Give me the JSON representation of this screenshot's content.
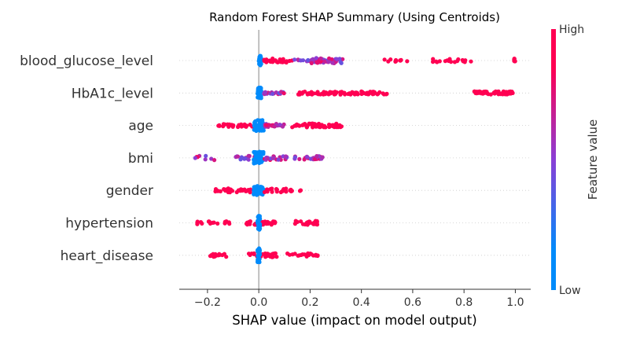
{
  "chart_data": {
    "type": "scatter",
    "title": "Random Forest SHAP Summary (Using Centroids)",
    "xlabel": "SHAP value (impact on model output)",
    "xlim": [
      -0.31,
      1.06
    ],
    "xticks": [
      -0.2,
      0.0,
      0.2,
      0.4,
      0.6,
      0.8,
      1.0
    ],
    "xtick_labels": [
      "−0.2",
      "0.0",
      "0.2",
      "0.4",
      "0.6",
      "0.8",
      "1.0"
    ],
    "grid": false,
    "colorbar": {
      "title": "Feature value",
      "high_label": "High",
      "low_label": "Low",
      "low_color": "#008bfb",
      "mid_color": "#8a3fd6",
      "high_color": "#ff0052"
    },
    "features": [
      {
        "name": "blood_glucose_level",
        "clusters": [
          {
            "range": [
              0.0,
              0.01
            ],
            "color": "low",
            "n": 40,
            "spread": 6
          },
          {
            "range": [
              0.02,
              0.13
            ],
            "color": "high",
            "n": 30,
            "spread": 2.5
          },
          {
            "range": [
              0.13,
              0.2
            ],
            "color": "mixed",
            "n": 8,
            "spread": 1.5
          },
          {
            "range": [
              0.2,
              0.33
            ],
            "color": "mixed",
            "n": 45,
            "spread": 3.5
          },
          {
            "range": [
              0.49,
              0.58
            ],
            "color": "high",
            "n": 10,
            "spread": 1.5
          },
          {
            "range": [
              0.67,
              0.83
            ],
            "color": "high",
            "n": 18,
            "spread": 2
          },
          {
            "range": [
              0.995,
              1.0
            ],
            "color": "high",
            "n": 6,
            "spread": 3
          }
        ]
      },
      {
        "name": "HbA1c_level",
        "clusters": [
          {
            "range": [
              -0.005,
              0.01
            ],
            "color": "low",
            "n": 40,
            "spread": 7
          },
          {
            "range": [
              0.02,
              0.1
            ],
            "color": "mixed",
            "n": 22,
            "spread": 1.5
          },
          {
            "range": [
              0.15,
              0.5
            ],
            "color": "high",
            "n": 90,
            "spread": 2
          },
          {
            "range": [
              0.84,
              1.0
            ],
            "color": "high",
            "n": 60,
            "spread": 2
          }
        ]
      },
      {
        "name": "age",
        "clusters": [
          {
            "range": [
              -0.16,
              -0.02
            ],
            "color": "high",
            "n": 26,
            "spread": 2
          },
          {
            "range": [
              -0.02,
              0.02
            ],
            "color": "low",
            "n": 40,
            "spread": 7
          },
          {
            "range": [
              0.02,
              0.1
            ],
            "color": "mixed",
            "n": 24,
            "spread": 2
          },
          {
            "range": [
              0.13,
              0.33
            ],
            "color": "high",
            "n": 55,
            "spread": 2.5
          }
        ]
      },
      {
        "name": "bmi",
        "clusters": [
          {
            "range": [
              -0.25,
              -0.17
            ],
            "color": "mixed",
            "n": 8,
            "spread": 3
          },
          {
            "range": [
              -0.09,
              -0.01
            ],
            "color": "mixed",
            "n": 18,
            "spread": 2.5
          },
          {
            "range": [
              -0.02,
              0.02
            ],
            "color": "low",
            "n": 40,
            "spread": 8
          },
          {
            "range": [
              0.02,
              0.11
            ],
            "color": "mixed",
            "n": 22,
            "spread": 2.5
          },
          {
            "range": [
              0.14,
              0.25
            ],
            "color": "mixed",
            "n": 30,
            "spread": 2.5
          }
        ]
      },
      {
        "name": "gender",
        "clusters": [
          {
            "range": [
              -0.17,
              -0.02
            ],
            "color": "high",
            "n": 35,
            "spread": 2.5
          },
          {
            "range": [
              -0.02,
              0.02
            ],
            "color": "low",
            "n": 40,
            "spread": 6
          },
          {
            "range": [
              0.02,
              0.13
            ],
            "color": "high",
            "n": 25,
            "spread": 2.5
          },
          {
            "range": [
              0.16,
              0.17
            ],
            "color": "high",
            "n": 2,
            "spread": 1
          }
        ]
      },
      {
        "name": "hypertension",
        "clusters": [
          {
            "range": [
              -0.24,
              -0.11
            ],
            "color": "high",
            "n": 18,
            "spread": 2
          },
          {
            "range": [
              -0.05,
              0.07
            ],
            "color": "high",
            "n": 30,
            "spread": 2.5
          },
          {
            "range": [
              -0.005,
              0.005
            ],
            "color": "low",
            "n": 40,
            "spread": 9
          },
          {
            "range": [
              0.14,
              0.24
            ],
            "color": "high",
            "n": 30,
            "spread": 2.5
          }
        ]
      },
      {
        "name": "heart_disease",
        "clusters": [
          {
            "range": [
              -0.2,
              -0.11
            ],
            "color": "high",
            "n": 16,
            "spread": 2
          },
          {
            "range": [
              -0.05,
              0.07
            ],
            "color": "high",
            "n": 32,
            "spread": 2.5
          },
          {
            "range": [
              -0.005,
              0.005
            ],
            "color": "low",
            "n": 40,
            "spread": 9
          },
          {
            "range": [
              0.11,
              0.23
            ],
            "color": "high",
            "n": 20,
            "spread": 2.5
          }
        ]
      }
    ]
  }
}
